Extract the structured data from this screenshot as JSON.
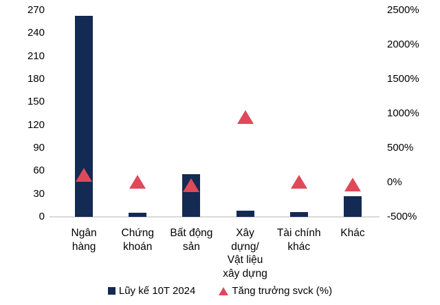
{
  "chart_data": {
    "type": "bar",
    "title": "",
    "categories": [
      "Ngân hàng",
      "Chứng khoán",
      "Bất động sản",
      "Xây dựng/ Vật liệu xây dựng",
      "Tài chính khác",
      "Khác"
    ],
    "category_label_lines": [
      [
        "Ngân",
        "hàng"
      ],
      [
        "Chứng",
        "khoán"
      ],
      [
        "Bất động",
        "sản"
      ],
      [
        "Xây",
        "dựng/",
        "Vật liệu",
        "xây dựng"
      ],
      [
        "Tài chính",
        "khác"
      ],
      [
        "Khác"
      ]
    ],
    "series": [
      {
        "name": "Lũy kế 10T 2024",
        "type": "bar",
        "axis": "left",
        "color": "#132a52",
        "values": [
          263,
          5,
          56,
          8,
          6,
          27
        ]
      },
      {
        "name": "Tăng trưởng svck (%)",
        "type": "triangle-marker",
        "axis": "right",
        "color": "#e0495a",
        "values": [
          110,
          10,
          -40,
          950,
          15,
          -25
        ]
      }
    ],
    "left_axis": {
      "min": 0,
      "max": 270,
      "step": 30,
      "tick_labels": [
        "270",
        "240",
        "210",
        "180",
        "150",
        "120",
        "90",
        "60",
        "30",
        "0"
      ]
    },
    "right_axis": {
      "min": -500,
      "max": 2500,
      "step": 500,
      "unit": "%",
      "tick_labels": [
        "2500%",
        "2000%",
        "1500%",
        "1000%",
        "500%",
        "0%",
        "-500%"
      ]
    },
    "grid": false,
    "legend_position": "bottom",
    "axis_line_color": "#d9d9d9",
    "text_color": "#000000",
    "background_color": "#ffffff"
  },
  "legend": {
    "items": [
      {
        "label": "Lũy kế 10T 2024",
        "marker": "square",
        "color": "#132a52"
      },
      {
        "label": "Tăng trưởng svck (%)",
        "marker": "triangle",
        "color": "#e0495a"
      }
    ]
  }
}
